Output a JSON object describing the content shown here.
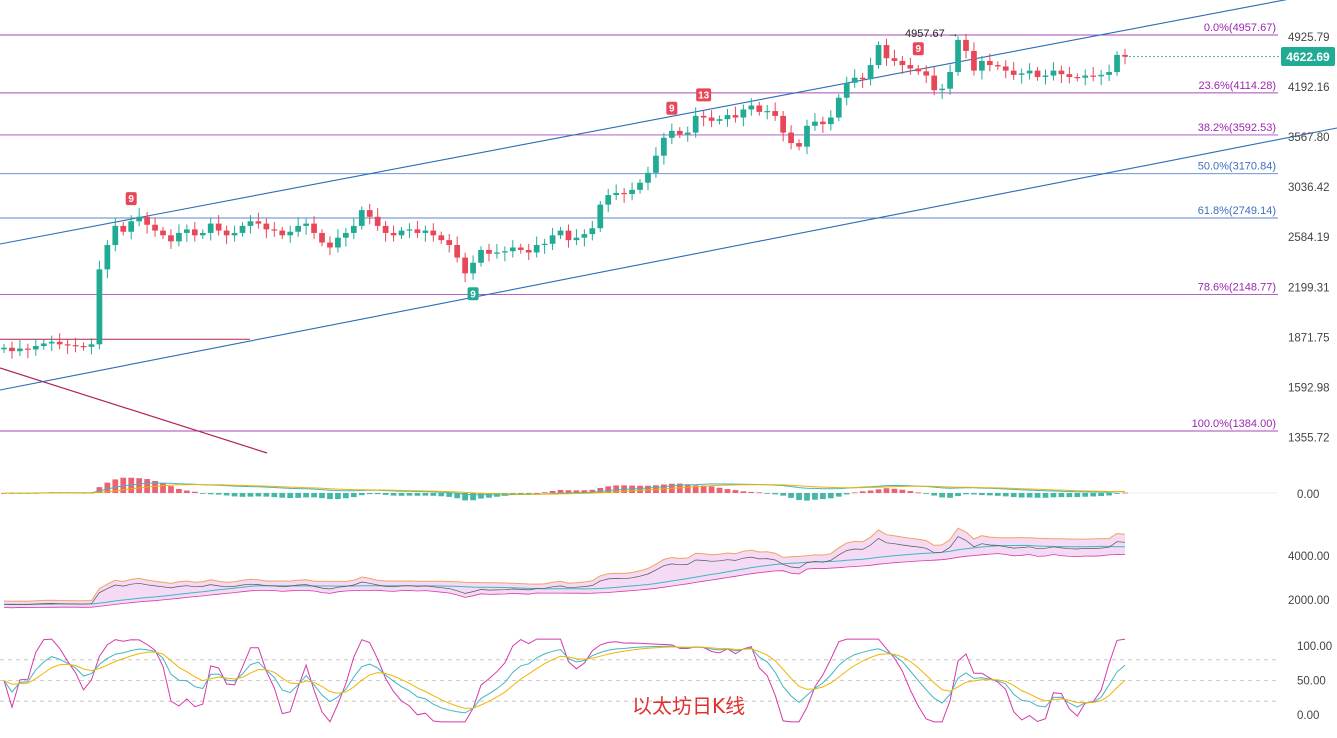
{
  "chart_data": {
    "type": "candlestick",
    "watermark": "以太坊日K线",
    "current_price": "4622.69",
    "current_price_value": 4622.69,
    "colors": {
      "up": "#22ab94",
      "down": "#e8475a",
      "fib": "#9c27b0",
      "fib_blue": "#3f6fbf",
      "channel": "#2b6cb5",
      "trendline_red": "#b2224f"
    },
    "price_axis": {
      "ticks": [
        {
          "label": "4925.79",
          "value": 4925.79
        },
        {
          "label": "4192.16",
          "value": 4192.16
        },
        {
          "label": "3567.80",
          "value": 3567.8
        },
        {
          "label": "3036.42",
          "value": 3036.42
        },
        {
          "label": "2584.19",
          "value": 2584.19
        },
        {
          "label": "2199.31",
          "value": 2199.31
        },
        {
          "label": "1871.75",
          "value": 1871.75
        },
        {
          "label": "1592.98",
          "value": 1592.98
        },
        {
          "label": "1355.72",
          "value": 1355.72
        }
      ],
      "scale": "log"
    },
    "fib_levels": [
      {
        "label": "0.0%(4957.67)",
        "value": 4957.67
      },
      {
        "label": "23.6%(4114.28)",
        "value": 4114.28
      },
      {
        "label": "38.2%(3592.53)",
        "value": 3592.53
      },
      {
        "label": "50.0%(3170.84)",
        "value": 3170.84
      },
      {
        "label": "61.8%(2749.14)",
        "value": 2749.14
      },
      {
        "label": "78.6%(2148.77)",
        "value": 2148.77
      },
      {
        "label": "100.0%(1384.00)",
        "value": 1384.0
      }
    ],
    "high_annotation": {
      "label": "4957.67",
      "value": 4957.67
    },
    "td_markers": [
      {
        "label": "9",
        "bar": 16,
        "dir": "up"
      },
      {
        "label": "9",
        "bar": 59,
        "dir": "down"
      },
      {
        "label": "9",
        "bar": 84,
        "dir": "up"
      },
      {
        "label": "13",
        "bar": 88,
        "dir": "up"
      },
      {
        "label": "9",
        "bar": 115,
        "dir": "up"
      }
    ],
    "closes": [
      1810,
      1790,
      1805,
      1800,
      1820,
      1835,
      1845,
      1830,
      1825,
      1820,
      1815,
      1830,
      2330,
      2520,
      2680,
      2630,
      2720,
      2760,
      2690,
      2640,
      2600,
      2550,
      2620,
      2650,
      2600,
      2620,
      2700,
      2640,
      2600,
      2620,
      2680,
      2720,
      2700,
      2650,
      2640,
      2600,
      2630,
      2680,
      2700,
      2620,
      2540,
      2500,
      2580,
      2620,
      2680,
      2820,
      2760,
      2680,
      2620,
      2600,
      2640,
      2650,
      2620,
      2640,
      2600,
      2560,
      2520,
      2420,
      2300,
      2380,
      2480,
      2450,
      2460,
      2470,
      2500,
      2480,
      2460,
      2520,
      2530,
      2600,
      2640,
      2560,
      2580,
      2610,
      2660,
      2870,
      2960,
      2980,
      2970,
      3010,
      3080,
      3180,
      3360,
      3560,
      3640,
      3600,
      3620,
      3820,
      3800,
      3760,
      3780,
      3830,
      3800,
      3900,
      3950,
      3870,
      3880,
      3820,
      3620,
      3500,
      3460,
      3700,
      3750,
      3720,
      3800,
      4050,
      4250,
      4320,
      4300,
      4500,
      4800,
      4600,
      4560,
      4500,
      4450,
      4410,
      4350,
      4150,
      4170,
      4400,
      4880,
      4710,
      4420,
      4560,
      4500,
      4480,
      4420,
      4360,
      4380,
      4420,
      4330,
      4350,
      4420,
      4370,
      4330,
      4320,
      4350,
      4340,
      4360,
      4400,
      4650,
      4622.69
    ],
    "macd_pane": {
      "zero_label": "0.00",
      "zero_value": 0
    },
    "band_pane": {
      "ticks": [
        {
          "label": "4000.00",
          "value": 4000
        },
        {
          "label": "2000.00",
          "value": 2000
        }
      ]
    },
    "kdj_pane": {
      "ticks": [
        {
          "label": "100.00",
          "value": 100
        },
        {
          "label": "50.00",
          "value": 50
        },
        {
          "label": "0.00",
          "value": 0
        }
      ]
    }
  }
}
